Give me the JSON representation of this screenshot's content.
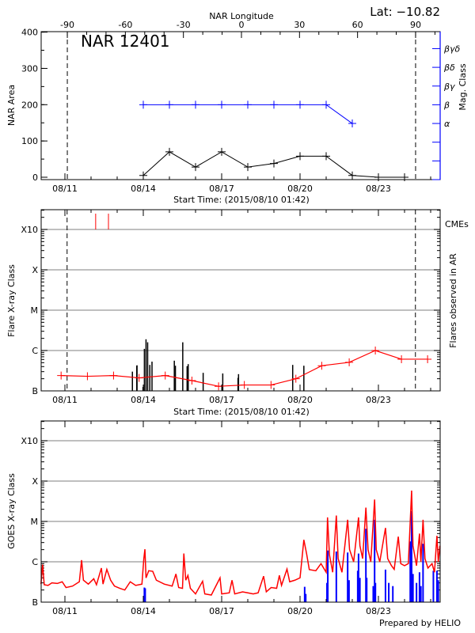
{
  "header": {
    "lat_label": "Lat: −10.82"
  },
  "footer": {
    "credit": "Prepared by HELIO"
  },
  "colors": {
    "axis": "#000000",
    "mag_class": "#0000ff",
    "flare_red": "#ff0000",
    "goes_short": "#0000ff",
    "grid": "#999999"
  },
  "chart_data": [
    {
      "type": "line",
      "title": "NAR 12401",
      "top_axis_label": "NAR Longitude",
      "top_ticks": [
        -90,
        -60,
        -30,
        0,
        30,
        60,
        90
      ],
      "limb_longitudes": [
        -90,
        90
      ],
      "xlabel": "Start Time: (2015/08/10 01:42)",
      "x_ticks": [
        "08/11",
        "08/14",
        "08/17",
        "08/20",
        "08/23"
      ],
      "xlim": [
        "2015-08-10T02:10",
        "2015-08-25T08:40"
      ],
      "ylabel": "NAR Area",
      "y_ticks": [
        0,
        100,
        200,
        300,
        400
      ],
      "ylim": [
        -7,
        400
      ],
      "y2label": "Mag. Class",
      "y2_ticks": [
        "α",
        "β",
        "βγ",
        "βδ",
        "βγδ"
      ],
      "grid": false,
      "area": [
        [
          "2015-08-14T00:00",
          5
        ],
        [
          "2015-08-15T00:00",
          70
        ],
        [
          "2015-08-16T00:00",
          28
        ],
        [
          "2015-08-17T00:00",
          70
        ],
        [
          "2015-08-18T00:00",
          28
        ],
        [
          "2015-08-19T00:00",
          38
        ],
        [
          "2015-08-20T00:00",
          58
        ],
        [
          "2015-08-21T00:00",
          58
        ],
        [
          "2015-08-22T00:00",
          5
        ],
        [
          "2015-08-23T00:00",
          0
        ],
        [
          "2015-08-24T00:00",
          0
        ]
      ],
      "mag_class": [
        [
          "2015-08-14T00:00",
          "β"
        ],
        [
          "2015-08-15T00:00",
          "β"
        ],
        [
          "2015-08-16T00:00",
          "β"
        ],
        [
          "2015-08-17T00:00",
          "β"
        ],
        [
          "2015-08-18T00:00",
          "β"
        ],
        [
          "2015-08-19T00:00",
          "β"
        ],
        [
          "2015-08-20T00:00",
          "β"
        ],
        [
          "2015-08-21T00:00",
          "β"
        ],
        [
          "2015-08-22T00:00",
          "α"
        ]
      ]
    },
    {
      "type": "bar",
      "xlabel": "Start Time: (2015/08/10 01:42)",
      "x_ticks": [
        "08/11",
        "08/14",
        "08/17",
        "08/20",
        "08/23"
      ],
      "xlim": [
        "2015-08-10T02:10",
        "2015-08-25T08:40"
      ],
      "ylabel": "Flare X-ray Class",
      "y2label": "Flares observed in AR",
      "y_scale": "log",
      "y_ticks": [
        [
          "B",
          1e-07
        ],
        [
          "C",
          1e-06
        ],
        [
          "M",
          1e-05
        ],
        [
          "X",
          0.0001
        ],
        [
          "X10",
          0.001
        ]
      ],
      "grid": true,
      "limb_dates": [
        "2015-08-11T02:00",
        "2015-08-24T10:00"
      ],
      "cme_label": "CMEs",
      "cmes": [
        "2015-08-12T04:15",
        "2015-08-12T16:00"
      ],
      "flares": [
        [
          "2015-08-13T14:00",
          3e-07
        ],
        [
          "2015-08-13T18:00",
          4.2e-07
        ],
        [
          "2015-08-13T18:15",
          4.3e-07
        ],
        [
          "2015-08-13T23:45",
          1.25e-07
        ],
        [
          "2015-08-14T01:00",
          1.1e-06
        ],
        [
          "2015-08-14T02:30",
          1.9e-06
        ],
        [
          "2015-08-14T04:00",
          1.6e-06
        ],
        [
          "2015-08-14T06:00",
          4.4e-07
        ],
        [
          "2015-08-14T08:00",
          5.3e-07
        ],
        [
          "2015-08-15T04:30",
          5.6e-07
        ],
        [
          "2015-08-15T05:30",
          4.2e-07
        ],
        [
          "2015-08-15T12:15",
          1.6e-06
        ],
        [
          "2015-08-15T16:15",
          4.1e-07
        ],
        [
          "2015-08-15T17:15",
          4.6e-07
        ],
        [
          "2015-08-16T07:00",
          2.8e-07
        ],
        [
          "2015-08-17T01:00",
          2.7e-07
        ],
        [
          "2015-08-17T15:00",
          2.1e-07
        ],
        [
          "2015-08-17T15:30",
          2.6e-07
        ],
        [
          "2015-08-19T17:15",
          4.4e-07
        ],
        [
          "2015-08-20T03:30",
          4.2e-07
        ]
      ],
      "daily_background": [
        [
          "2015-08-10T20:30",
          2.4e-07
        ],
        [
          "2015-08-11T20:40",
          2.3e-07
        ],
        [
          "2015-08-12T20:40",
          2.4e-07
        ],
        [
          "2015-08-13T20:10",
          2.1e-07
        ],
        [
          "2015-08-14T20:10",
          2.4e-07
        ],
        [
          "2015-08-15T20:40",
          1.8e-07
        ],
        [
          "2015-08-16T21:10",
          1.3e-07
        ],
        [
          "2015-08-17T20:50",
          1.4e-07
        ],
        [
          "2015-08-18T21:20",
          1.4e-07
        ],
        [
          "2015-08-19T20:10",
          2e-07
        ],
        [
          "2015-08-20T19:55",
          4.2e-07
        ],
        [
          "2015-08-21T21:10",
          5.1e-07
        ],
        [
          "2015-08-22T21:10",
          1e-06
        ],
        [
          "2015-08-23T21:10",
          6.1e-07
        ],
        [
          "2015-08-24T21:10",
          6.1e-07
        ]
      ]
    },
    {
      "type": "line",
      "x_ticks": [
        "08/11",
        "08/14",
        "08/17",
        "08/20",
        "08/23"
      ],
      "xlim": [
        "2015-08-10T02:10",
        "2015-08-25T08:40"
      ],
      "ylabel": "GOES X-ray Class",
      "y_scale": "log",
      "y_ticks": [
        [
          "B",
          1e-07
        ],
        [
          "C",
          1e-06
        ],
        [
          "M",
          1e-05
        ],
        [
          "X",
          0.0001
        ],
        [
          "X10",
          0.001
        ]
      ],
      "grid": true,
      "goes_long": [
        [
          "2015-08-10T02:00",
          2.8e-07
        ],
        [
          "2015-08-10T03:30",
          8.5e-07
        ],
        [
          "2015-08-10T05:00",
          2.7e-07
        ],
        [
          "2015-08-10T08:30",
          2.6e-07
        ],
        [
          "2015-08-10T12:00",
          3e-07
        ],
        [
          "2015-08-10T17:00",
          2.9e-07
        ],
        [
          "2015-08-10T21:30",
          3.2e-07
        ],
        [
          "2015-08-11T01:00",
          2.3e-07
        ],
        [
          "2015-08-11T07:00",
          2.5e-07
        ],
        [
          "2015-08-11T13:15",
          3.2e-07
        ],
        [
          "2015-08-11T15:20",
          1.1e-06
        ],
        [
          "2015-08-11T17:00",
          3.5e-07
        ],
        [
          "2015-08-11T21:30",
          2.8e-07
        ],
        [
          "2015-08-12T02:30",
          3.8e-07
        ],
        [
          "2015-08-12T05:00",
          2.7e-07
        ],
        [
          "2015-08-12T09:30",
          7e-07
        ],
        [
          "2015-08-12T11:00",
          2.8e-07
        ],
        [
          "2015-08-12T14:30",
          6.5e-07
        ],
        [
          "2015-08-12T18:00",
          3.5e-07
        ],
        [
          "2015-08-12T21:30",
          2.5e-07
        ],
        [
          "2015-08-13T02:30",
          2.2e-07
        ],
        [
          "2015-08-13T07:00",
          2e-07
        ],
        [
          "2015-08-13T12:00",
          3.2e-07
        ],
        [
          "2015-08-13T17:00",
          2.6e-07
        ],
        [
          "2015-08-13T22:45",
          2.8e-07
        ],
        [
          "2015-08-14T00:30",
          1.2e-06
        ],
        [
          "2015-08-14T01:30",
          2.05e-06
        ],
        [
          "2015-08-14T02:30",
          4e-07
        ],
        [
          "2015-08-14T05:00",
          6e-07
        ],
        [
          "2015-08-14T08:40",
          5.8e-07
        ],
        [
          "2015-08-14T12:00",
          3.5e-07
        ],
        [
          "2015-08-14T19:15",
          2.8e-07
        ],
        [
          "2015-08-15T02:30",
          2.5e-07
        ],
        [
          "2015-08-15T06:00",
          5e-07
        ],
        [
          "2015-08-15T08:30",
          2.3e-07
        ],
        [
          "2015-08-15T12:00",
          2.2e-07
        ],
        [
          "2015-08-15T13:15",
          1.6e-06
        ],
        [
          "2015-08-15T15:00",
          3.5e-07
        ],
        [
          "2015-08-15T17:00",
          4.6e-07
        ],
        [
          "2015-08-15T19:15",
          2.2e-07
        ],
        [
          "2015-08-16T00:00",
          1.6e-07
        ],
        [
          "2015-08-16T06:30",
          3.3e-07
        ],
        [
          "2015-08-16T08:30",
          1.6e-07
        ],
        [
          "2015-08-16T14:30",
          1.5e-07
        ],
        [
          "2015-08-16T22:30",
          4e-07
        ],
        [
          "2015-08-17T00:00",
          1.6e-07
        ],
        [
          "2015-08-17T07:00",
          1.7e-07
        ],
        [
          "2015-08-17T09:30",
          3.5e-07
        ],
        [
          "2015-08-17T12:00",
          1.6e-07
        ],
        [
          "2015-08-17T19:15",
          1.8e-07
        ],
        [
          "2015-08-18T00:00",
          1.7e-07
        ],
        [
          "2015-08-18T05:00",
          1.6e-07
        ],
        [
          "2015-08-18T09:30",
          1.7e-07
        ],
        [
          "2015-08-18T14:30",
          4.4e-07
        ],
        [
          "2015-08-18T17:00",
          1.8e-07
        ],
        [
          "2015-08-18T21:30",
          2.3e-07
        ],
        [
          "2015-08-19T02:30",
          2.2e-07
        ],
        [
          "2015-08-19T05:00",
          4.6e-07
        ],
        [
          "2015-08-19T07:00",
          2.6e-07
        ],
        [
          "2015-08-19T12:00",
          6.6e-07
        ],
        [
          "2015-08-19T14:30",
          3.2e-07
        ],
        [
          "2015-08-19T19:15",
          3.5e-07
        ],
        [
          "2015-08-20T00:00",
          4e-07
        ],
        [
          "2015-08-20T03:30",
          3.5e-06
        ],
        [
          "2015-08-20T06:00",
          1.6e-06
        ],
        [
          "2015-08-20T08:30",
          6.4e-07
        ],
        [
          "2015-08-20T14:30",
          6e-07
        ],
        [
          "2015-08-20T19:15",
          9e-07
        ],
        [
          "2015-08-21T00:00",
          5.5e-07
        ],
        [
          "2015-08-21T01:15",
          1.26e-05
        ],
        [
          "2015-08-21T03:00",
          1.5e-06
        ],
        [
          "2015-08-21T06:00",
          5.5e-07
        ],
        [
          "2015-08-21T09:20",
          1.4e-05
        ],
        [
          "2015-08-21T11:00",
          1.2e-06
        ],
        [
          "2015-08-21T14:30",
          5.5e-07
        ],
        [
          "2015-08-21T19:45",
          1.1e-05
        ],
        [
          "2015-08-21T21:30",
          2e-06
        ],
        [
          "2015-08-22T01:15",
          1e-06
        ],
        [
          "2015-08-22T05:45",
          1.26e-05
        ],
        [
          "2015-08-22T07:00",
          2.5e-06
        ],
        [
          "2015-08-22T09:30",
          1.2e-06
        ],
        [
          "2015-08-22T12:30",
          2.2e-05
        ],
        [
          "2015-08-22T14:30",
          2e-06
        ],
        [
          "2015-08-22T17:00",
          1e-06
        ],
        [
          "2015-08-22T20:30",
          3.5e-05
        ],
        [
          "2015-08-22T22:00",
          2e-06
        ],
        [
          "2015-08-23T01:15",
          1e-06
        ],
        [
          "2015-08-23T06:30",
          6.9e-06
        ],
        [
          "2015-08-23T08:30",
          1.2e-06
        ],
        [
          "2015-08-23T12:00",
          8e-07
        ],
        [
          "2015-08-23T14:30",
          6.5e-07
        ],
        [
          "2015-08-23T18:15",
          4.2e-06
        ],
        [
          "2015-08-23T20:30",
          9e-07
        ],
        [
          "2015-08-24T00:00",
          8e-07
        ],
        [
          "2015-08-24T03:30",
          9e-07
        ],
        [
          "2015-08-24T06:30",
          5.8e-05
        ],
        [
          "2015-08-24T07:45",
          2.5e-06
        ],
        [
          "2015-08-24T11:00",
          8e-07
        ],
        [
          "2015-08-24T13:45",
          5e-06
        ],
        [
          "2015-08-24T15:00",
          1e-06
        ],
        [
          "2015-08-24T17:00",
          1.1e-05
        ],
        [
          "2015-08-24T18:45",
          1.2e-06
        ],
        [
          "2015-08-24T21:30",
          7e-07
        ],
        [
          "2015-08-25T01:15",
          9e-07
        ],
        [
          "2015-08-25T03:30",
          5.5e-07
        ],
        [
          "2015-08-25T05:45",
          4.4e-06
        ],
        [
          "2015-08-25T07:00",
          1e-06
        ],
        [
          "2015-08-25T08:30",
          2.5e-06
        ]
      ],
      "goes_short": [
        [
          "2015-08-14T01:00",
          2.3e-07
        ],
        [
          "2015-08-14T01:45",
          2.2e-07
        ],
        [
          "2015-08-20T04:15",
          2.4e-07
        ],
        [
          "2015-08-20T05:15",
          1.6e-07
        ],
        [
          "2015-08-21T00:45",
          3e-07
        ],
        [
          "2015-08-21T01:30",
          1.9e-06
        ],
        [
          "2015-08-21T09:20",
          1.8e-06
        ],
        [
          "2015-08-21T19:45",
          1.7e-06
        ],
        [
          "2015-08-21T21:00",
          3.5e-07
        ],
        [
          "2015-08-22T05:00",
          6e-07
        ],
        [
          "2015-08-22T05:45",
          1.6e-06
        ],
        [
          "2015-08-22T07:00",
          4e-07
        ],
        [
          "2015-08-22T12:30",
          6.6e-06
        ],
        [
          "2015-08-22T13:15",
          4e-07
        ],
        [
          "2015-08-22T19:15",
          2.5e-07
        ],
        [
          "2015-08-22T20:30",
          1.1e-05
        ],
        [
          "2015-08-22T21:15",
          3e-07
        ],
        [
          "2015-08-23T06:30",
          6.4e-07
        ],
        [
          "2015-08-23T09:30",
          3e-07
        ],
        [
          "2015-08-23T13:15",
          2.5e-07
        ],
        [
          "2015-08-24T05:15",
          3.2e-06
        ],
        [
          "2015-08-24T06:30",
          1.8e-05
        ],
        [
          "2015-08-24T07:45",
          5e-07
        ],
        [
          "2015-08-24T11:00",
          3e-07
        ],
        [
          "2015-08-24T13:45",
          5.5e-07
        ],
        [
          "2015-08-24T15:00",
          2.5e-07
        ],
        [
          "2015-08-24T17:00",
          2.8e-06
        ],
        [
          "2015-08-25T02:30",
          6e-07
        ],
        [
          "2015-08-25T05:45",
          6e-07
        ],
        [
          "2015-08-25T07:00",
          3.5e-07
        ]
      ]
    }
  ]
}
